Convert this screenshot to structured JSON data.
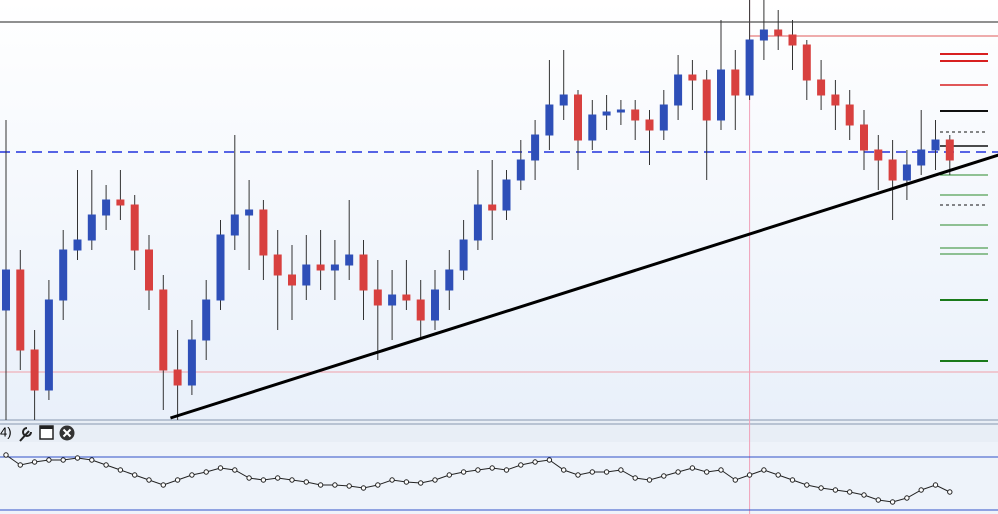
{
  "toolbar": {
    "label": "4)"
  },
  "chart_data": {
    "type": "candlestick",
    "open": [
      110,
      150,
      70,
      30,
      120,
      170,
      180,
      205,
      220,
      215,
      170,
      130,
      50,
      35,
      80,
      120,
      185,
      205,
      210,
      165,
      145,
      135,
      155,
      150,
      155,
      165,
      130,
      115,
      125,
      120,
      100,
      130,
      150,
      180,
      215,
      210,
      240,
      260,
      285,
      315,
      325,
      280,
      305,
      308,
      310,
      300,
      290,
      315,
      345,
      340,
      300,
      350,
      325,
      380,
      390,
      385,
      375,
      340,
      325,
      315,
      295,
      270,
      260,
      240,
      255,
      270,
      280
    ],
    "high": [
      300,
      170,
      90,
      140,
      190,
      250,
      250,
      235,
      250,
      225,
      185,
      145,
      90,
      100,
      140,
      200,
      285,
      240,
      220,
      190,
      175,
      185,
      190,
      180,
      220,
      180,
      160,
      150,
      160,
      140,
      150,
      170,
      200,
      250,
      260,
      250,
      280,
      300,
      360,
      370,
      330,
      320,
      325,
      320,
      320,
      310,
      330,
      365,
      360,
      350,
      400,
      370,
      420,
      420,
      410,
      400,
      380,
      360,
      340,
      330,
      310,
      285,
      280,
      270,
      310,
      300,
      285
    ],
    "low": [
      0,
      50,
      0,
      20,
      100,
      160,
      170,
      190,
      200,
      150,
      110,
      10,
      0,
      25,
      60,
      110,
      170,
      150,
      140,
      90,
      100,
      120,
      130,
      120,
      140,
      100,
      60,
      80,
      110,
      80,
      90,
      110,
      140,
      170,
      180,
      200,
      230,
      240,
      270,
      300,
      250,
      270,
      290,
      295,
      280,
      255,
      280,
      300,
      310,
      240,
      290,
      290,
      320,
      360,
      370,
      350,
      320,
      310,
      290,
      280,
      250,
      230,
      200,
      220,
      245,
      250,
      245
    ],
    "close": [
      150,
      70,
      30,
      120,
      170,
      180,
      205,
      220,
      215,
      170,
      130,
      50,
      35,
      80,
      120,
      185,
      205,
      210,
      165,
      145,
      135,
      155,
      150,
      155,
      165,
      130,
      115,
      125,
      120,
      100,
      130,
      150,
      180,
      215,
      210,
      240,
      260,
      285,
      315,
      325,
      280,
      305,
      308,
      310,
      300,
      290,
      315,
      345,
      340,
      300,
      350,
      325,
      380,
      390,
      385,
      375,
      340,
      325,
      315,
      295,
      270,
      260,
      240,
      255,
      270,
      280,
      260
    ],
    "ylim": [
      0,
      420
    ],
    "up_color": "#2e4fb8",
    "down_color": "#d8403f",
    "levels": [
      {
        "value": 398,
        "color": "#222222",
        "dash": false
      },
      {
        "value": 268,
        "color": "#2233dd",
        "dash": true
      },
      {
        "value": 48,
        "color": "#f0a0a8",
        "dash": false
      },
      {
        "value": 384,
        "color": "#e05a5a",
        "dash": false,
        "from": 52
      }
    ],
    "cursor_index": 52,
    "trendline": [
      [
        11.5,
        2
      ],
      [
        69.4,
        265
      ]
    ],
    "oscillator": {
      "values": [
        59,
        49,
        52,
        54,
        54,
        56,
        54,
        49,
        44,
        39,
        34,
        29,
        34,
        39,
        42,
        46,
        44,
        36,
        34,
        36,
        34,
        32,
        29,
        29,
        28,
        26,
        29,
        34,
        32,
        31,
        34,
        39,
        42,
        44,
        46,
        44,
        49,
        52,
        54,
        44,
        39,
        42,
        42,
        44,
        36,
        34,
        38,
        42,
        46,
        42,
        44,
        34,
        39,
        44,
        39,
        34,
        29,
        26,
        24,
        22,
        19,
        14,
        12,
        16,
        24,
        29,
        22
      ],
      "ylim": [
        0,
        90
      ],
      "levels": [
        57,
        4
      ]
    }
  }
}
